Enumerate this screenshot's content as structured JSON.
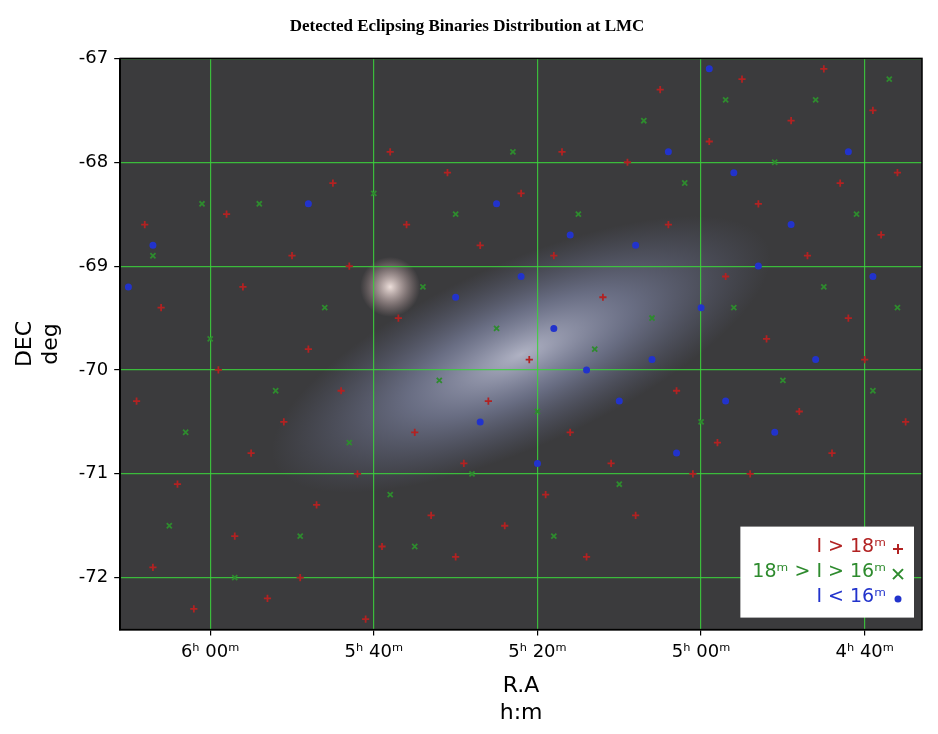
{
  "chart_data": {
    "type": "scatter",
    "title": "Detected Eclipsing Binaries Distribution at LMC",
    "x_label": [
      "R.A",
      "h:m"
    ],
    "y_label": [
      "DEC",
      "deg"
    ],
    "xlim": [
      371,
      273
    ],
    "ylim": [
      -72.5,
      -67
    ],
    "xticks": [
      {
        "value": 360,
        "label": "6ʰ 00ᵐ"
      },
      {
        "value": 340,
        "label": "5ʰ 40ᵐ"
      },
      {
        "value": 320,
        "label": "5ʰ 20ᵐ"
      },
      {
        "value": 300,
        "label": "5ʰ 00ᵐ"
      },
      {
        "value": 280,
        "label": "4ʰ 40ᵐ"
      }
    ],
    "yticks": [
      -72,
      -71,
      -70,
      -69,
      -68,
      -67
    ],
    "grid": true,
    "legend": "lower right",
    "series": [
      {
        "name": "I > 18ᵐ",
        "color": "#b22222",
        "marker": "plus",
        "values": [
          [
            368,
            -68.6
          ],
          [
            366,
            -69.4
          ],
          [
            369,
            -70.3
          ],
          [
            364,
            -71.1
          ],
          [
            367,
            -71.9
          ],
          [
            362,
            -72.3
          ],
          [
            358,
            -68.5
          ],
          [
            356,
            -69.2
          ],
          [
            359,
            -70.0
          ],
          [
            355,
            -70.8
          ],
          [
            357,
            -71.6
          ],
          [
            353,
            -72.2
          ],
          [
            350,
            -68.9
          ],
          [
            348,
            -69.8
          ],
          [
            351,
            -70.5
          ],
          [
            347,
            -71.3
          ],
          [
            349,
            -72.0
          ],
          [
            345,
            -68.2
          ],
          [
            343,
            -69.0
          ],
          [
            344,
            -70.2
          ],
          [
            342,
            -71.0
          ],
          [
            339,
            -71.7
          ],
          [
            341,
            -72.4
          ],
          [
            338,
            -67.9
          ],
          [
            336,
            -68.6
          ],
          [
            335,
            -70.6
          ],
          [
            333,
            -71.4
          ],
          [
            337,
            -69.5
          ],
          [
            331,
            -68.1
          ],
          [
            329,
            -70.9
          ],
          [
            330,
            -71.8
          ],
          [
            327,
            -68.8
          ],
          [
            326,
            -70.3
          ],
          [
            324,
            -71.5
          ],
          [
            322,
            -68.3
          ],
          [
            321,
            -69.9
          ],
          [
            319,
            -71.2
          ],
          [
            317,
            -67.9
          ],
          [
            316,
            -70.6
          ],
          [
            314,
            -71.8
          ],
          [
            318,
            -68.9
          ],
          [
            312,
            -69.3
          ],
          [
            311,
            -70.9
          ],
          [
            309,
            -68.0
          ],
          [
            308,
            -71.4
          ],
          [
            305,
            -67.3
          ],
          [
            304,
            -68.6
          ],
          [
            303,
            -70.2
          ],
          [
            301,
            -71.0
          ],
          [
            299,
            -67.8
          ],
          [
            297,
            -69.1
          ],
          [
            298,
            -70.7
          ],
          [
            295,
            -67.2
          ],
          [
            293,
            -68.4
          ],
          [
            292,
            -69.7
          ],
          [
            294,
            -71.0
          ],
          [
            289,
            -67.6
          ],
          [
            287,
            -68.9
          ],
          [
            288,
            -70.4
          ],
          [
            285,
            -67.1
          ],
          [
            283,
            -68.2
          ],
          [
            282,
            -69.5
          ],
          [
            284,
            -70.8
          ],
          [
            279,
            -67.5
          ],
          [
            278,
            -68.7
          ],
          [
            280,
            -69.9
          ],
          [
            276,
            -68.1
          ],
          [
            275,
            -70.5
          ]
        ]
      },
      {
        "name": "18ᵐ > I > 16ᵐ",
        "color": "#2e8b2e",
        "marker": "x",
        "values": [
          [
            367,
            -68.9
          ],
          [
            363,
            -70.6
          ],
          [
            365,
            -71.5
          ],
          [
            360,
            -69.7
          ],
          [
            357,
            -72.0
          ],
          [
            354,
            -68.4
          ],
          [
            352,
            -70.2
          ],
          [
            349,
            -71.6
          ],
          [
            346,
            -69.4
          ],
          [
            343,
            -70.7
          ],
          [
            340,
            -68.3
          ],
          [
            338,
            -71.2
          ],
          [
            334,
            -69.2
          ],
          [
            332,
            -70.1
          ],
          [
            330,
            -68.5
          ],
          [
            328,
            -71.0
          ],
          [
            325,
            -69.6
          ],
          [
            323,
            -67.9
          ],
          [
            320,
            -70.4
          ],
          [
            318,
            -71.6
          ],
          [
            315,
            -68.5
          ],
          [
            313,
            -69.8
          ],
          [
            310,
            -71.1
          ],
          [
            307,
            -67.6
          ],
          [
            306,
            -69.5
          ],
          [
            302,
            -68.2
          ],
          [
            300,
            -70.5
          ],
          [
            297,
            -67.4
          ],
          [
            296,
            -69.4
          ],
          [
            291,
            -68.0
          ],
          [
            290,
            -70.1
          ],
          [
            286,
            -67.4
          ],
          [
            285,
            -69.2
          ],
          [
            281,
            -68.5
          ],
          [
            279,
            -70.2
          ],
          [
            277,
            -67.2
          ],
          [
            276,
            -69.4
          ],
          [
            335,
            -71.7
          ],
          [
            361,
            -68.4
          ]
        ]
      },
      {
        "name": "I < 16ᵐ",
        "color": "#2233cc",
        "marker": "circle",
        "values": [
          [
            322,
            -69.1
          ],
          [
            318,
            -69.6
          ],
          [
            314,
            -70.0
          ],
          [
            310,
            -70.3
          ],
          [
            306,
            -69.9
          ],
          [
            303,
            -70.8
          ],
          [
            300,
            -69.4
          ],
          [
            297,
            -70.3
          ],
          [
            293,
            -69.0
          ],
          [
            289,
            -68.6
          ],
          [
            286,
            -69.9
          ],
          [
            282,
            -67.9
          ],
          [
            279,
            -69.1
          ],
          [
            308,
            -68.8
          ],
          [
            316,
            -68.7
          ],
          [
            325,
            -68.4
          ],
          [
            330,
            -69.3
          ],
          [
            327,
            -70.5
          ],
          [
            320,
            -70.9
          ],
          [
            304,
            -67.9
          ],
          [
            296,
            -68.1
          ],
          [
            291,
            -70.6
          ],
          [
            367,
            -68.8
          ],
          [
            348,
            -68.4
          ],
          [
            370,
            -69.2
          ],
          [
            299,
            -67.1
          ]
        ]
      }
    ]
  }
}
